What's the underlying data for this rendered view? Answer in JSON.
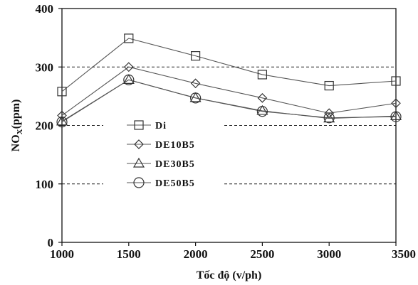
{
  "chart_data": {
    "type": "line",
    "title": "",
    "x": [
      1000,
      1500,
      2000,
      2500,
      3000,
      3500
    ],
    "xlabel": "Tốc độ (v/ph)",
    "ylabel_main": "NO",
    "ylabel_sub": "X",
    "ylabel_unit": "(ppm)",
    "xlim": [
      1000,
      3500
    ],
    "ylim": [
      0,
      400
    ],
    "xticks": [
      "1000",
      "1500",
      "2000",
      "2500",
      "3000",
      "3500"
    ],
    "yticks": [
      "0",
      "100",
      "200",
      "300",
      "400"
    ],
    "grid": "dashed horizontal at 100, 200, 300",
    "legend_position": "center-left",
    "series": [
      {
        "name": "Di",
        "marker": "square",
        "values": [
          258,
          349,
          319,
          287,
          268,
          276
        ]
      },
      {
        "name": "DE10B5",
        "marker": "diamond",
        "values": [
          217,
          300,
          272,
          247,
          221,
          238
        ]
      },
      {
        "name": "DE30B5",
        "marker": "triangle",
        "values": [
          207,
          278,
          247,
          225,
          212,
          216
        ]
      },
      {
        "name": "DE50B5",
        "marker": "circle",
        "values": [
          206,
          278,
          247,
          224,
          213,
          215
        ]
      }
    ],
    "line_color": "#555555",
    "marker_color": "#333333"
  }
}
